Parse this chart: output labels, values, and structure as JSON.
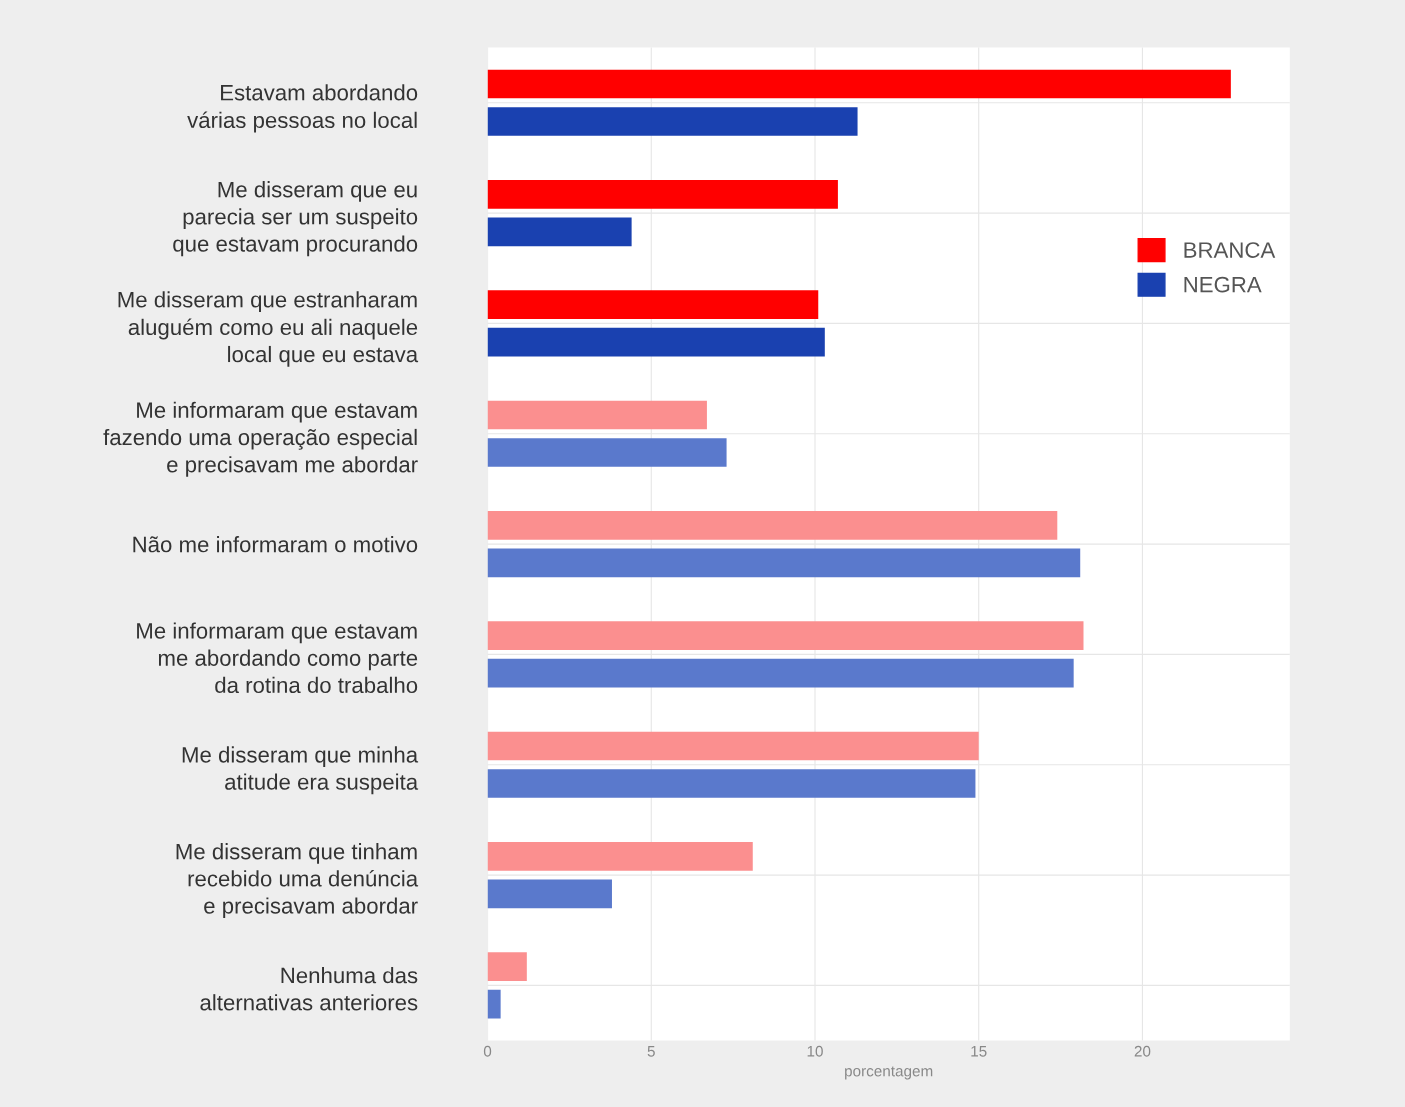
{
  "chart_data": {
    "type": "bar",
    "orientation": "horizontal",
    "categories": [
      "Estavam abordando\nvárias pessoas no local",
      "Me disseram que eu\nparecia ser um suspeito\nque estavam procurando",
      "Me disseram que estranharam\naluguém como eu ali naquele\nlocal que eu estava",
      "Me informaram que estavam\nfazendo uma operação especial\ne precisavam me abordar",
      "Não me informaram o motivo",
      "Me informaram que estavam\nme abordando como parte\nda rotina do trabalho",
      "Me disseram que minha\natitude era suspeita",
      "Me disseram que tinham\nrecebido uma denúncia\ne precisavam abordar",
      "Nenhuma das\nalternativas anteriores"
    ],
    "series": [
      {
        "name": "BRANCA",
        "color": "#ff0000",
        "colors": [
          "#ff0000",
          "#ff0000",
          "#ff0000",
          "#fb8f8f",
          "#fb8f8f",
          "#fb8f8f",
          "#fb8f8f",
          "#fb8f8f",
          "#fb8f8f"
        ],
        "values": [
          22.7,
          10.7,
          10.1,
          6.7,
          17.4,
          18.2,
          15.0,
          8.1,
          1.2
        ]
      },
      {
        "name": "NEGRA",
        "color": "#1a41b0",
        "colors": [
          "#1a41b0",
          "#1a41b0",
          "#1a41b0",
          "#5a79cc",
          "#5a79cc",
          "#5a79cc",
          "#5a79cc",
          "#5a79cc",
          "#5a79cc"
        ],
        "values": [
          11.3,
          4.4,
          10.3,
          7.3,
          18.1,
          17.9,
          14.9,
          3.8,
          0.4
        ]
      }
    ],
    "xlabel": "porcentagem",
    "xlim": [
      0,
      24.5
    ],
    "xticks": [
      0,
      5,
      10,
      15,
      20
    ],
    "grid": true,
    "legend": "top right"
  }
}
